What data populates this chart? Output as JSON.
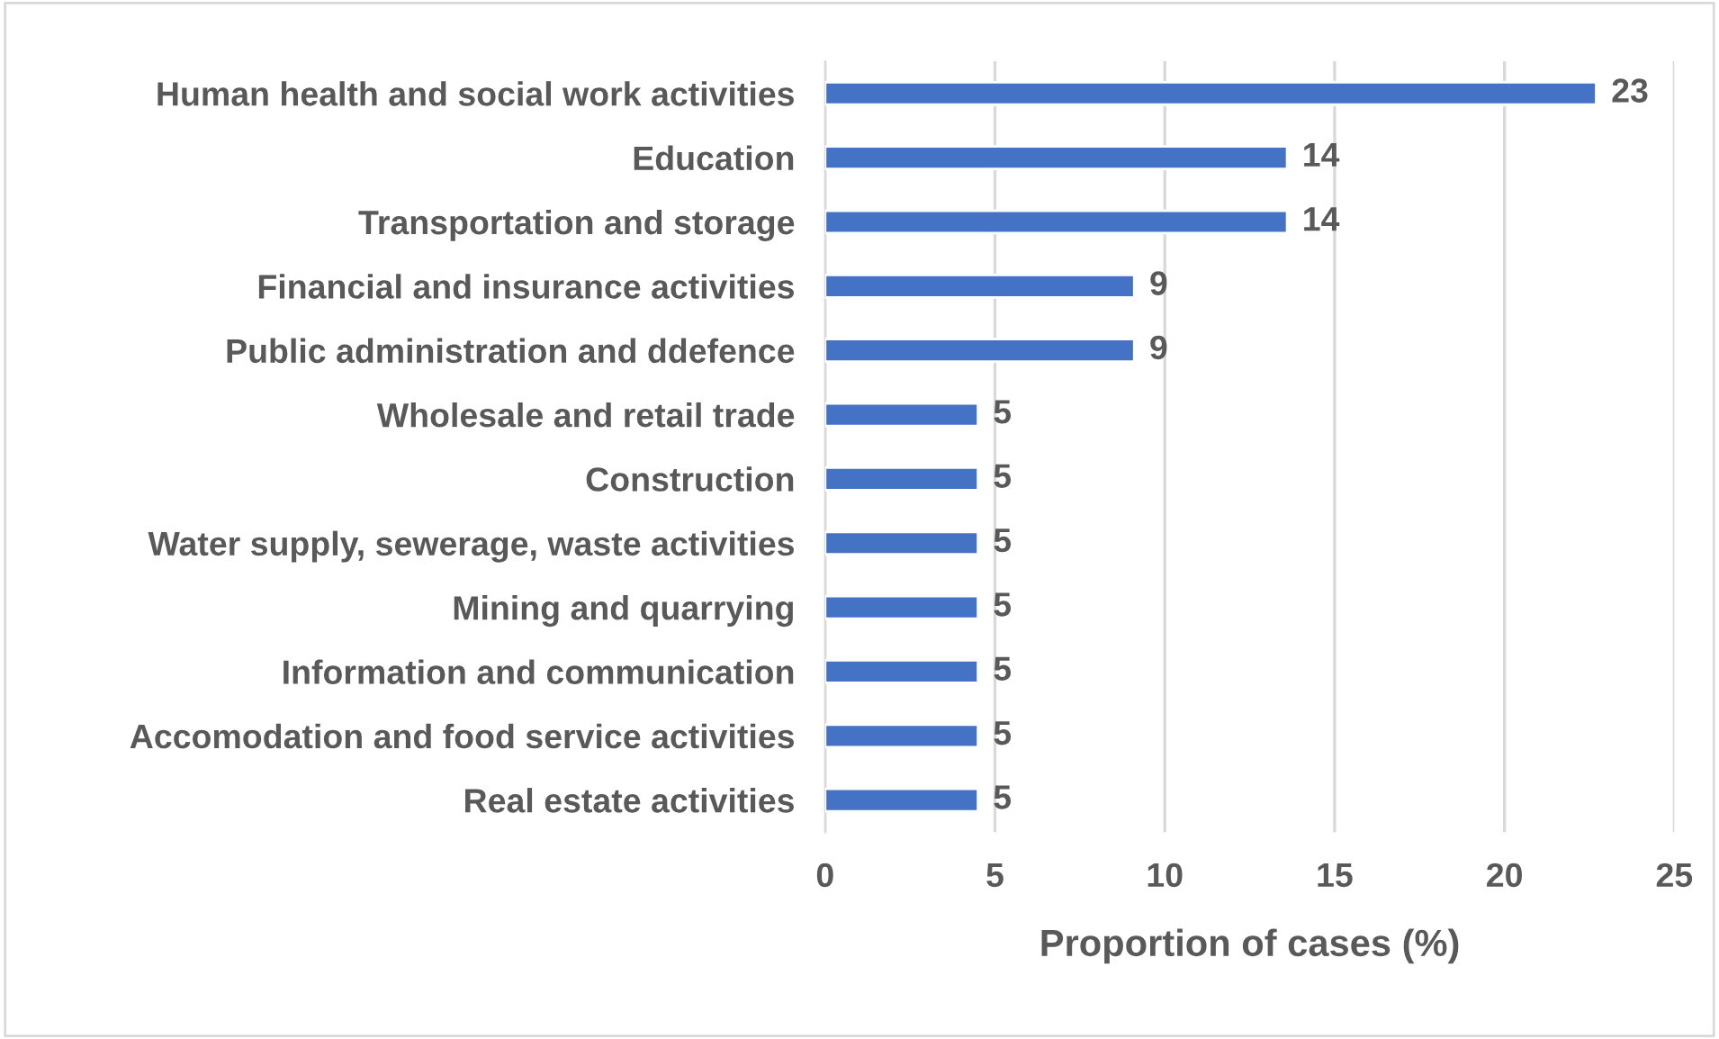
{
  "chart_data": {
    "type": "bar",
    "orientation": "horizontal",
    "xlabel": "Proportion of cases (%)",
    "categories": [
      "Human health and social work activities",
      "Education",
      "Transportation and storage",
      "Financial and insurance activities",
      "Public administration and ddefence",
      "Wholesale and retail trade",
      "Construction",
      "Water supply, sewerage, waste activities",
      "Mining and quarrying",
      "Information and communication",
      "Accomodation and food service activities",
      "Real estate activities"
    ],
    "values": [
      22.7,
      13.6,
      13.6,
      9.1,
      9.1,
      4.5,
      4.5,
      4.5,
      4.5,
      4.5,
      4.5,
      4.5
    ],
    "value_labels": [
      "23",
      "14",
      "14",
      "9",
      "9",
      "5",
      "5",
      "5",
      "5",
      "5",
      "5",
      "5"
    ],
    "color": "#4472c4",
    "xlim": [
      0,
      25
    ],
    "xticks": [
      0,
      5,
      10,
      15,
      20,
      25
    ],
    "grid": "x",
    "legend": false
  }
}
